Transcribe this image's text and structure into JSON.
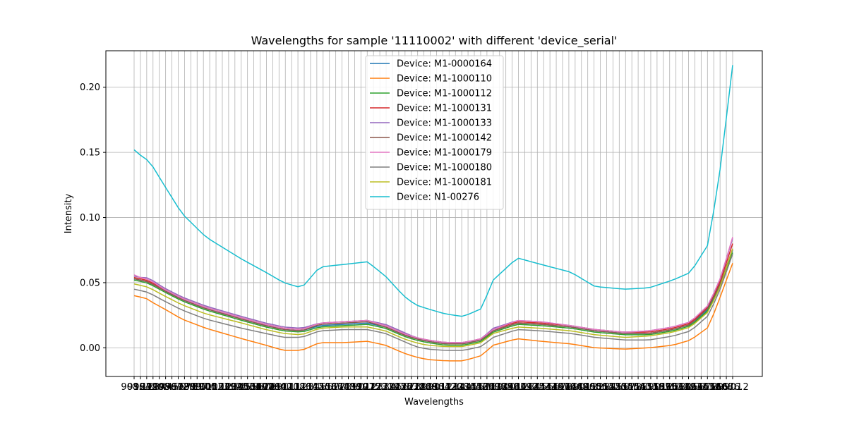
{
  "chart_data": {
    "type": "line",
    "title": "Wavelengths for sample '11110002' with different 'device_serial'",
    "xlabel": "Wavelengths",
    "ylabel": "Intensity",
    "ylim": [
      -0.022,
      0.228
    ],
    "yticks": [
      "0.00",
      "0.05",
      "0.10",
      "0.15",
      "0.20"
    ],
    "grid": true,
    "legend_position": "upper center",
    "x_tick_labels_visible": [
      "908.1",
      "1676.2"
    ],
    "x_first": 908.1,
    "x_last": 1676.2,
    "x_count": 96,
    "colors": [
      "#1f77b4",
      "#ff7f0e",
      "#2ca02c",
      "#d62728",
      "#9467bd",
      "#8c564b",
      "#e377c2",
      "#7f7f7f",
      "#bcbd22",
      "#17becf"
    ],
    "shape_keypoints": [
      0,
      0.01,
      0.02,
      0.03,
      0.05,
      0.08,
      0.12,
      0.18,
      0.22,
      0.25,
      0.28,
      0.31,
      0.35,
      0.39,
      0.42,
      0.45,
      0.47,
      0.49,
      0.52,
      0.55,
      0.58,
      0.6,
      0.64,
      0.68,
      0.73,
      0.77,
      0.82,
      0.86,
      0.9,
      0.93,
      0.96,
      0.98,
      1.0
    ],
    "series": [
      {
        "name": "Device: M1-0000164",
        "values": [
          0.053,
          0.052,
          0.051,
          0.049,
          0.044,
          0.037,
          0.03,
          0.022,
          0.017,
          0.014,
          0.013,
          0.017,
          0.018,
          0.019,
          0.016,
          0.01,
          0.007,
          0.005,
          0.003,
          0.003,
          0.006,
          0.013,
          0.019,
          0.018,
          0.016,
          0.013,
          0.011,
          0.011,
          0.014,
          0.018,
          0.03,
          0.05,
          0.075
        ]
      },
      {
        "name": "Device: M1-1000110",
        "values": [
          0.04,
          0.039,
          0.038,
          0.035,
          0.03,
          0.022,
          0.015,
          0.007,
          0.002,
          -0.002,
          -0.002,
          0.004,
          0.004,
          0.005,
          0.002,
          -0.004,
          -0.007,
          -0.009,
          -0.01,
          -0.01,
          -0.006,
          0.002,
          0.007,
          0.005,
          0.003,
          0.0,
          -0.001,
          0.0,
          0.002,
          0.006,
          0.016,
          0.04,
          0.065
        ]
      },
      {
        "name": "Device: M1-1000112",
        "values": [
          0.052,
          0.051,
          0.05,
          0.048,
          0.043,
          0.036,
          0.029,
          0.021,
          0.016,
          0.013,
          0.012,
          0.016,
          0.017,
          0.018,
          0.015,
          0.009,
          0.006,
          0.004,
          0.002,
          0.002,
          0.005,
          0.012,
          0.018,
          0.017,
          0.015,
          0.012,
          0.01,
          0.01,
          0.013,
          0.017,
          0.029,
          0.048,
          0.073
        ]
      },
      {
        "name": "Device: M1-1000131",
        "values": [
          0.054,
          0.053,
          0.052,
          0.05,
          0.045,
          0.038,
          0.031,
          0.023,
          0.018,
          0.015,
          0.014,
          0.019,
          0.02,
          0.021,
          0.017,
          0.011,
          0.008,
          0.006,
          0.004,
          0.004,
          0.007,
          0.014,
          0.02,
          0.019,
          0.017,
          0.014,
          0.012,
          0.012,
          0.015,
          0.019,
          0.032,
          0.052,
          0.08
        ]
      },
      {
        "name": "Device: M1-1000133",
        "values": [
          0.055,
          0.054,
          0.054,
          0.052,
          0.046,
          0.039,
          0.032,
          0.024,
          0.019,
          0.016,
          0.015,
          0.019,
          0.02,
          0.021,
          0.018,
          0.012,
          0.008,
          0.006,
          0.004,
          0.004,
          0.007,
          0.015,
          0.021,
          0.02,
          0.017,
          0.014,
          0.012,
          0.013,
          0.016,
          0.02,
          0.033,
          0.054,
          0.084
        ]
      },
      {
        "name": "Device: M1-1000142",
        "values": [
          0.053,
          0.052,
          0.051,
          0.049,
          0.044,
          0.037,
          0.03,
          0.022,
          0.017,
          0.014,
          0.013,
          0.018,
          0.019,
          0.02,
          0.016,
          0.01,
          0.007,
          0.005,
          0.003,
          0.003,
          0.006,
          0.013,
          0.019,
          0.018,
          0.016,
          0.013,
          0.011,
          0.011,
          0.014,
          0.018,
          0.031,
          0.05,
          0.076
        ]
      },
      {
        "name": "Device: M1-1000179",
        "values": [
          0.056,
          0.054,
          0.053,
          0.051,
          0.045,
          0.038,
          0.031,
          0.023,
          0.018,
          0.015,
          0.014,
          0.019,
          0.02,
          0.021,
          0.017,
          0.011,
          0.008,
          0.006,
          0.004,
          0.004,
          0.007,
          0.014,
          0.021,
          0.02,
          0.017,
          0.014,
          0.012,
          0.013,
          0.016,
          0.02,
          0.033,
          0.054,
          0.085
        ]
      },
      {
        "name": "Device: M1-1000180",
        "values": [
          0.045,
          0.044,
          0.043,
          0.041,
          0.036,
          0.029,
          0.022,
          0.015,
          0.011,
          0.008,
          0.008,
          0.013,
          0.014,
          0.014,
          0.011,
          0.005,
          0.001,
          -0.001,
          -0.002,
          -0.002,
          0.001,
          0.008,
          0.014,
          0.013,
          0.011,
          0.008,
          0.006,
          0.006,
          0.009,
          0.013,
          0.025,
          0.046,
          0.072
        ]
      },
      {
        "name": "Device: M1-1000181",
        "values": [
          0.049,
          0.048,
          0.047,
          0.045,
          0.04,
          0.033,
          0.026,
          0.019,
          0.014,
          0.011,
          0.01,
          0.015,
          0.016,
          0.016,
          0.013,
          0.007,
          0.004,
          0.002,
          0.001,
          0.001,
          0.004,
          0.011,
          0.016,
          0.015,
          0.013,
          0.01,
          0.008,
          0.009,
          0.012,
          0.016,
          0.028,
          0.048,
          0.076
        ]
      },
      {
        "name": "Device: N1-00276",
        "values": [
          0.152,
          0.148,
          0.145,
          0.14,
          0.125,
          0.103,
          0.085,
          0.068,
          0.058,
          0.05,
          0.046,
          0.062,
          0.064,
          0.066,
          0.055,
          0.04,
          0.033,
          0.03,
          0.026,
          0.024,
          0.03,
          0.052,
          0.069,
          0.064,
          0.058,
          0.047,
          0.045,
          0.046,
          0.052,
          0.058,
          0.08,
          0.14,
          0.217
        ]
      }
    ]
  }
}
